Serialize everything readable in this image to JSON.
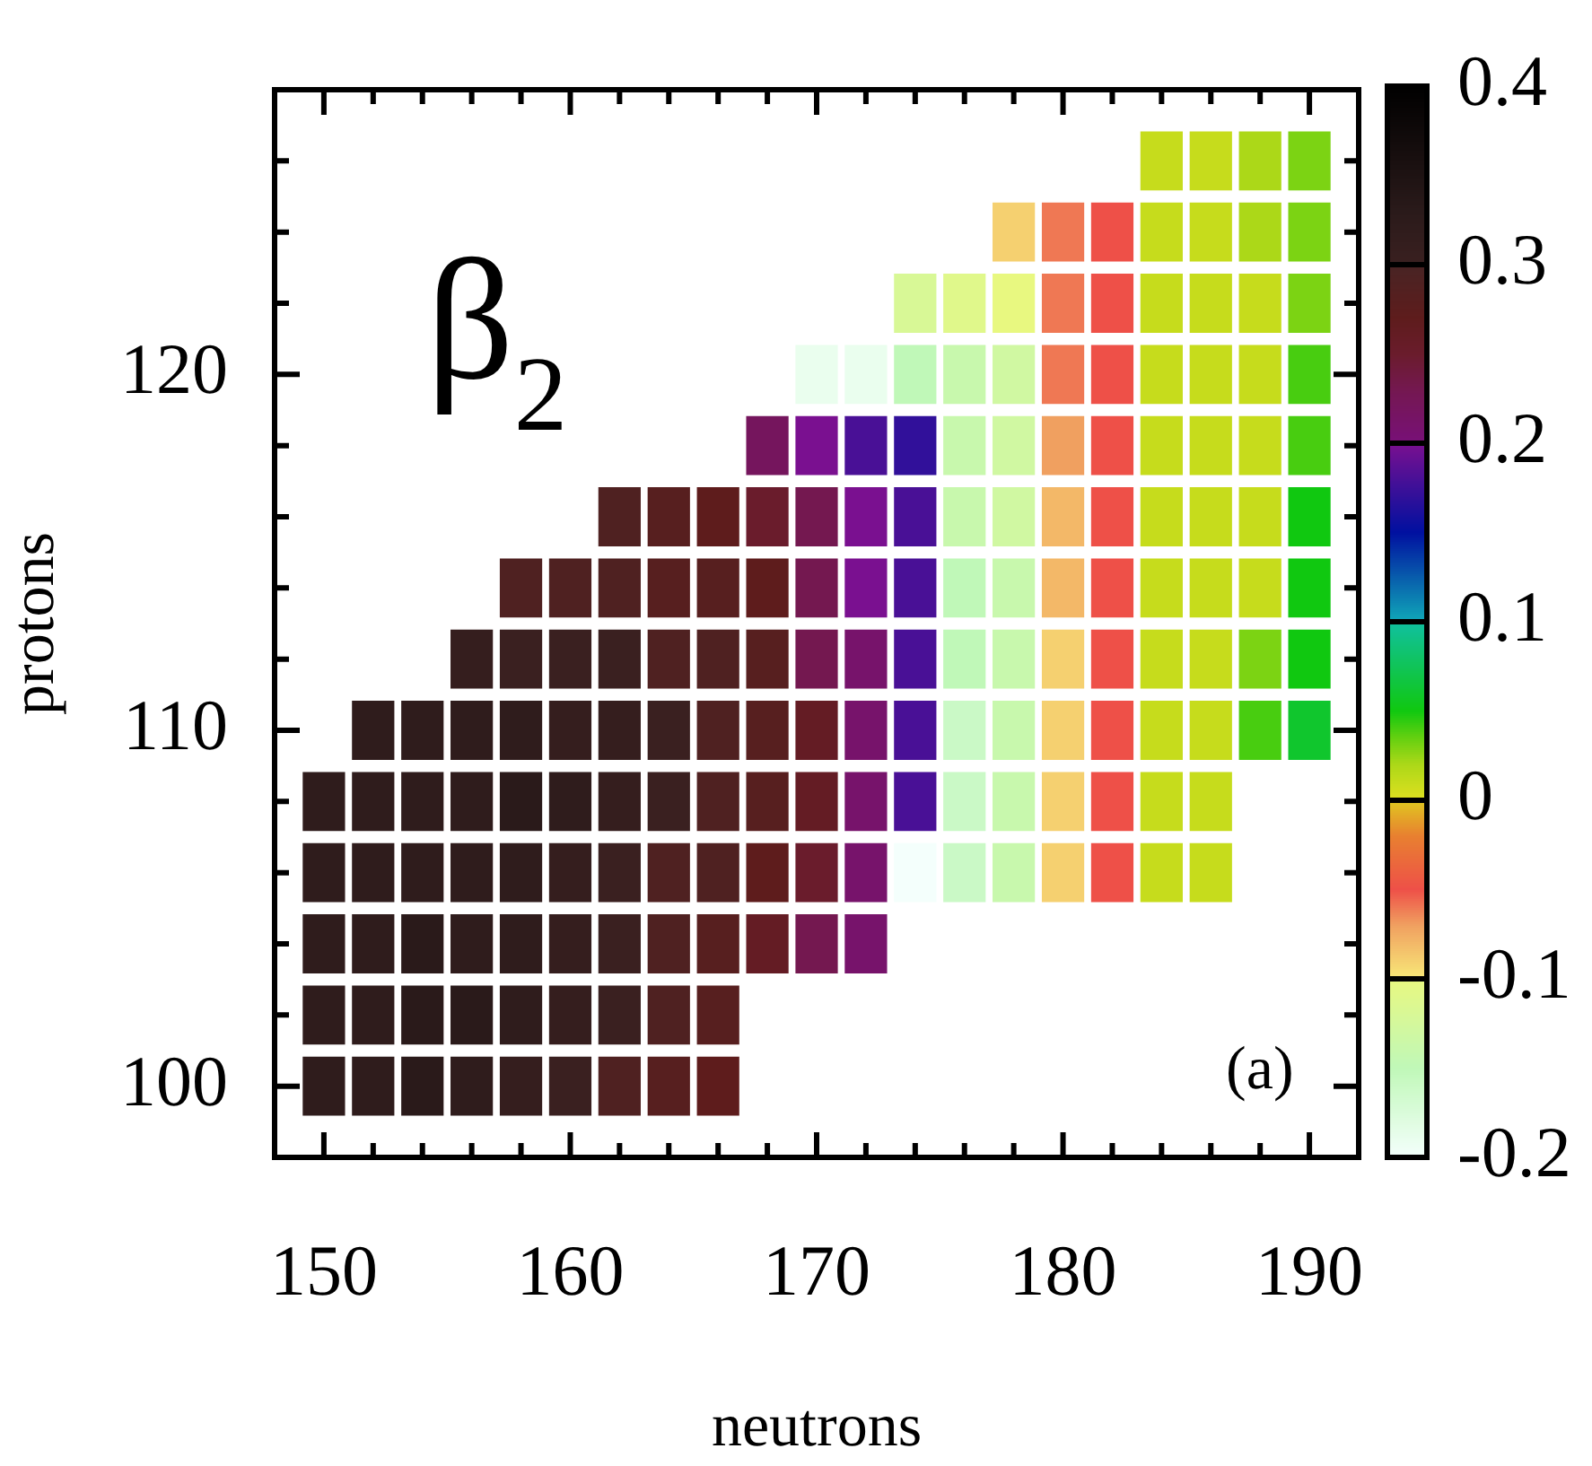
{
  "chart_data": {
    "type": "scatter",
    "xlabel": "neutrons",
    "ylabel": "protons",
    "annotations": [
      "β$_{2}$",
      "(a)"
    ],
    "marker": "square",
    "xlim": [
      148,
      192
    ],
    "ylim": [
      98,
      128
    ],
    "xticks": [
      150,
      {
        "value": 152,
        "label": null
      },
      {
        "value": 154,
        "label": null
      },
      {
        "value": 156,
        "label": null
      },
      {
        "value": 158,
        "label": null
      },
      160,
      {
        "value": 162,
        "label": null
      },
      {
        "value": 164,
        "label": null
      },
      {
        "value": 166,
        "label": null
      },
      {
        "value": 168,
        "label": null
      },
      170,
      {
        "value": 172,
        "label": null
      },
      {
        "value": 174,
        "label": null
      },
      {
        "value": 176,
        "label": null
      },
      {
        "value": 178,
        "label": null
      },
      180,
      {
        "value": 182,
        "label": null
      },
      {
        "value": 184,
        "label": null
      },
      {
        "value": 186,
        "label": null
      },
      {
        "value": 188,
        "label": null
      },
      190
    ],
    "yticks": [
      100,
      {
        "value": 102,
        "label": null
      },
      {
        "value": 104,
        "label": null
      },
      {
        "value": 106,
        "label": null
      },
      {
        "value": 108,
        "label": null
      },
      110,
      {
        "value": 112,
        "label": null
      },
      {
        "value": 114,
        "label": null
      },
      {
        "value": 116,
        "label": null
      },
      {
        "value": 118,
        "label": null
      },
      120,
      {
        "value": 122,
        "label": null
      },
      {
        "value": 124,
        "label": null
      },
      {
        "value": 126,
        "label": null
      }
    ],
    "clim": [
      -0.2,
      0.4
    ],
    "cticks": [
      -0.2,
      -0.1,
      0,
      0.1,
      0.2,
      0.3,
      0.4
    ],
    "x": [
      150,
      152,
      154,
      156,
      158,
      160,
      162,
      164,
      166,
      150,
      152,
      154,
      156,
      158,
      160,
      162,
      164,
      166,
      150,
      152,
      154,
      156,
      158,
      160,
      162,
      164,
      166,
      168,
      170,
      172,
      150,
      152,
      154,
      156,
      158,
      160,
      162,
      164,
      166,
      168,
      170,
      172,
      174,
      176,
      178,
      180,
      182,
      184,
      186,
      150,
      152,
      154,
      156,
      158,
      160,
      162,
      164,
      166,
      168,
      170,
      172,
      174,
      176,
      178,
      180,
      182,
      184,
      186,
      152,
      154,
      156,
      158,
      160,
      162,
      164,
      166,
      168,
      170,
      172,
      174,
      176,
      178,
      180,
      182,
      184,
      186,
      188,
      190,
      156,
      158,
      160,
      162,
      164,
      166,
      168,
      170,
      172,
      174,
      176,
      178,
      180,
      182,
      184,
      186,
      188,
      190,
      158,
      160,
      162,
      164,
      166,
      168,
      170,
      172,
      174,
      176,
      178,
      180,
      182,
      184,
      186,
      188,
      190,
      162,
      164,
      166,
      168,
      170,
      172,
      174,
      176,
      178,
      180,
      182,
      184,
      186,
      188,
      190,
      168,
      170,
      172,
      174,
      176,
      178,
      180,
      182,
      184,
      186,
      188,
      190,
      170,
      172,
      174,
      176,
      178,
      180,
      182,
      184,
      186,
      188,
      190,
      174,
      176,
      178,
      180,
      182,
      184,
      186,
      188,
      190,
      178,
      180,
      182,
      184,
      186,
      188,
      190,
      184,
      186,
      188,
      190
    ],
    "values": [
      100,
      100,
      100,
      100,
      100,
      100,
      100,
      100,
      100,
      102,
      102,
      102,
      102,
      102,
      102,
      102,
      102,
      102,
      104,
      104,
      104,
      104,
      104,
      104,
      104,
      104,
      104,
      104,
      104,
      104,
      106,
      106,
      106,
      106,
      106,
      106,
      106,
      106,
      106,
      106,
      106,
      106,
      106,
      106,
      106,
      106,
      106,
      106,
      106,
      108,
      108,
      108,
      108,
      108,
      108,
      108,
      108,
      108,
      108,
      108,
      108,
      108,
      108,
      108,
      108,
      108,
      108,
      108,
      110,
      110,
      110,
      110,
      110,
      110,
      110,
      110,
      110,
      110,
      110,
      110,
      110,
      110,
      110,
      110,
      110,
      110,
      110,
      110,
      112,
      112,
      112,
      112,
      112,
      112,
      112,
      112,
      112,
      112,
      112,
      112,
      112,
      112,
      112,
      112,
      112,
      112,
      114,
      114,
      114,
      114,
      114,
      114,
      114,
      114,
      114,
      114,
      114,
      114,
      114,
      114,
      114,
      114,
      114,
      116,
      116,
      116,
      116,
      116,
      116,
      116,
      116,
      116,
      116,
      116,
      116,
      116,
      116,
      116,
      118,
      118,
      118,
      118,
      118,
      118,
      118,
      118,
      118,
      118,
      118,
      118,
      120,
      120,
      120,
      120,
      120,
      120,
      120,
      120,
      120,
      120,
      120,
      122,
      122,
      122,
      122,
      122,
      122,
      122,
      122,
      122,
      124,
      124,
      124,
      124,
      124,
      124,
      124,
      126,
      126,
      126,
      126
    ],
    "cvalues": [
      0.32,
      0.32,
      0.33,
      0.32,
      0.31,
      0.3,
      0.29,
      0.28,
      0.27,
      0.32,
      0.32,
      0.33,
      0.33,
      0.32,
      0.31,
      0.3,
      0.29,
      0.28,
      0.32,
      0.32,
      0.33,
      0.32,
      0.32,
      0.31,
      0.3,
      0.29,
      0.28,
      0.26,
      0.23,
      0.21,
      0.32,
      0.32,
      0.32,
      0.32,
      0.32,
      0.31,
      0.3,
      0.29,
      0.29,
      0.27,
      0.25,
      0.21,
      -0.2,
      -0.16,
      -0.14,
      -0.09,
      -0.05,
      0.01,
      0.01,
      0.32,
      0.32,
      0.32,
      0.32,
      0.33,
      0.32,
      0.31,
      0.3,
      0.29,
      0.28,
      0.26,
      0.21,
      0.18,
      -0.16,
      -0.14,
      -0.09,
      -0.05,
      0.01,
      0.01,
      0.32,
      0.32,
      0.32,
      0.32,
      0.31,
      0.31,
      0.3,
      0.29,
      0.28,
      0.26,
      0.21,
      0.18,
      -0.16,
      -0.14,
      -0.09,
      -0.05,
      0.01,
      0.01,
      0.04,
      0.06,
      0.31,
      0.3,
      0.3,
      0.3,
      0.29,
      0.29,
      0.28,
      0.23,
      0.21,
      0.18,
      -0.15,
      -0.14,
      -0.09,
      -0.05,
      0.01,
      0.01,
      0.03,
      0.05,
      0.29,
      0.29,
      0.29,
      0.28,
      0.28,
      0.27,
      0.23,
      0.2,
      0.18,
      -0.15,
      -0.14,
      -0.08,
      -0.05,
      0.01,
      0.01,
      0.01,
      0.05,
      0.29,
      0.28,
      0.27,
      0.25,
      0.23,
      0.2,
      0.18,
      -0.14,
      -0.13,
      -0.08,
      -0.05,
      0.01,
      0.01,
      0.01,
      0.05,
      0.22,
      0.2,
      0.18,
      0.17,
      -0.14,
      -0.13,
      -0.07,
      -0.05,
      0.01,
      0.01,
      0.01,
      0.04,
      -0.19,
      -0.19,
      -0.15,
      -0.14,
      -0.13,
      -0.06,
      -0.05,
      0.01,
      0.01,
      0.01,
      0.04,
      -0.12,
      -0.11,
      -0.1,
      -0.06,
      -0.05,
      0.01,
      0.01,
      0.01,
      0.03,
      -0.09,
      -0.06,
      -0.05,
      0.01,
      0.01,
      0.02,
      0.03,
      0.01,
      0.01,
      0.02,
      0.03
    ]
  }
}
